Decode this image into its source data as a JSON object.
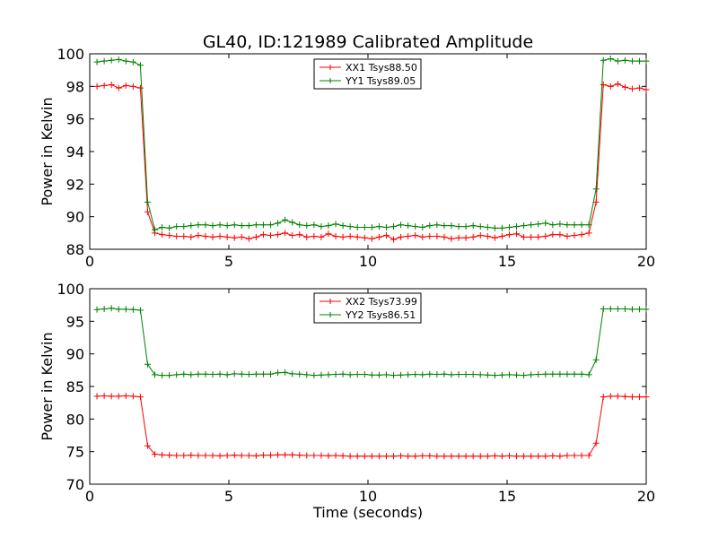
{
  "chart_data": [
    {
      "type": "line",
      "title": "GL40, ID:121989 Calibrated Amplitude",
      "xlabel": "",
      "ylabel": "Power in Kelvin",
      "xlim": [
        0,
        20
      ],
      "ylim": [
        88,
        100
      ],
      "xticks": [
        "0",
        "5",
        "10",
        "15",
        "20"
      ],
      "yticks": [
        "88",
        "90",
        "92",
        "94",
        "96",
        "98",
        "100"
      ],
      "legend_position": "top-center",
      "x": [
        0.26,
        0.52,
        0.78,
        1.04,
        1.3,
        1.56,
        1.82,
        2.08,
        2.34,
        2.6,
        2.86,
        3.12,
        3.38,
        3.64,
        3.9,
        4.16,
        4.42,
        4.68,
        4.94,
        5.2,
        5.46,
        5.72,
        5.98,
        6.24,
        6.5,
        6.76,
        7.02,
        7.28,
        7.54,
        7.8,
        8.06,
        8.32,
        8.58,
        8.84,
        9.1,
        9.36,
        9.62,
        9.88,
        10.14,
        10.4,
        10.66,
        10.92,
        11.18,
        11.44,
        11.7,
        11.96,
        12.22,
        12.48,
        12.74,
        13.0,
        13.26,
        13.52,
        13.78,
        14.04,
        14.3,
        14.56,
        14.82,
        15.08,
        15.34,
        15.6,
        15.86,
        16.12,
        16.38,
        16.64,
        16.9,
        17.16,
        17.42,
        17.68,
        17.94,
        18.2,
        18.46,
        18.72,
        18.98,
        19.24,
        19.5,
        19.76,
        20.0
      ],
      "series": [
        {
          "name": "XX1 Tsys88.50",
          "color": "#ff0000",
          "values": [
            98.0,
            98.05,
            98.1,
            97.9,
            98.05,
            98.0,
            97.9,
            90.3,
            89.0,
            88.9,
            88.85,
            88.8,
            88.8,
            88.75,
            88.85,
            88.8,
            88.75,
            88.8,
            88.75,
            88.7,
            88.75,
            88.65,
            88.75,
            88.9,
            88.85,
            88.9,
            89.0,
            88.85,
            88.9,
            88.75,
            88.8,
            88.75,
            88.95,
            88.8,
            88.75,
            88.8,
            88.75,
            88.7,
            88.65,
            88.75,
            88.85,
            88.6,
            88.75,
            88.8,
            88.85,
            88.75,
            88.8,
            88.8,
            88.75,
            88.65,
            88.7,
            88.7,
            88.75,
            88.85,
            88.8,
            88.7,
            88.8,
            88.9,
            88.95,
            88.75,
            88.75,
            88.75,
            88.8,
            88.9,
            88.9,
            88.8,
            88.85,
            88.9,
            89.0,
            90.9,
            98.1,
            98.0,
            98.15,
            97.95,
            97.85,
            97.9,
            97.8
          ]
        },
        {
          "name": "YY1 Tsys89.05",
          "color": "#008000",
          "values": [
            99.5,
            99.55,
            99.6,
            99.65,
            99.55,
            99.5,
            99.3,
            90.9,
            89.2,
            89.35,
            89.3,
            89.4,
            89.4,
            89.45,
            89.5,
            89.5,
            89.45,
            89.5,
            89.45,
            89.5,
            89.45,
            89.45,
            89.5,
            89.5,
            89.5,
            89.6,
            89.8,
            89.65,
            89.5,
            89.45,
            89.5,
            89.4,
            89.45,
            89.55,
            89.45,
            89.4,
            89.35,
            89.35,
            89.35,
            89.4,
            89.35,
            89.4,
            89.5,
            89.45,
            89.4,
            89.35,
            89.45,
            89.5,
            89.45,
            89.45,
            89.4,
            89.4,
            89.45,
            89.4,
            89.35,
            89.3,
            89.3,
            89.35,
            89.4,
            89.45,
            89.5,
            89.55,
            89.6,
            89.5,
            89.55,
            89.5,
            89.5,
            89.5,
            89.5,
            91.7,
            99.6,
            99.7,
            99.55,
            99.6,
            99.55,
            99.55,
            99.55
          ]
        }
      ]
    },
    {
      "type": "line",
      "title": "",
      "xlabel": "Time (seconds)",
      "ylabel": "Power in Kelvin",
      "xlim": [
        0,
        20
      ],
      "ylim": [
        70,
        100
      ],
      "xticks": [
        "0",
        "5",
        "10",
        "15",
        "20"
      ],
      "yticks": [
        "70",
        "75",
        "80",
        "85",
        "90",
        "95",
        "100"
      ],
      "legend_position": "top-center",
      "x": [
        0.26,
        0.52,
        0.78,
        1.04,
        1.3,
        1.56,
        1.82,
        2.08,
        2.34,
        2.6,
        2.86,
        3.12,
        3.38,
        3.64,
        3.9,
        4.16,
        4.42,
        4.68,
        4.94,
        5.2,
        5.46,
        5.72,
        5.98,
        6.24,
        6.5,
        6.76,
        7.02,
        7.28,
        7.54,
        7.8,
        8.06,
        8.32,
        8.58,
        8.84,
        9.1,
        9.36,
        9.62,
        9.88,
        10.14,
        10.4,
        10.66,
        10.92,
        11.18,
        11.44,
        11.7,
        11.96,
        12.22,
        12.48,
        12.74,
        13.0,
        13.26,
        13.52,
        13.78,
        14.04,
        14.3,
        14.56,
        14.82,
        15.08,
        15.34,
        15.6,
        15.86,
        16.12,
        16.38,
        16.64,
        16.9,
        17.16,
        17.42,
        17.68,
        17.94,
        18.2,
        18.46,
        18.72,
        18.98,
        19.24,
        19.5,
        19.76,
        20.0
      ],
      "series": [
        {
          "name": "XX2 Tsys73.99",
          "color": "#ff0000",
          "values": [
            83.5,
            83.55,
            83.5,
            83.5,
            83.55,
            83.5,
            83.4,
            75.9,
            74.6,
            74.5,
            74.45,
            74.4,
            74.4,
            74.45,
            74.4,
            74.4,
            74.4,
            74.35,
            74.4,
            74.45,
            74.4,
            74.4,
            74.35,
            74.45,
            74.45,
            74.5,
            74.5,
            74.5,
            74.45,
            74.4,
            74.4,
            74.4,
            74.35,
            74.4,
            74.35,
            74.3,
            74.3,
            74.3,
            74.3,
            74.3,
            74.3,
            74.3,
            74.35,
            74.3,
            74.3,
            74.35,
            74.35,
            74.3,
            74.3,
            74.3,
            74.3,
            74.3,
            74.3,
            74.3,
            74.3,
            74.35,
            74.3,
            74.35,
            74.3,
            74.3,
            74.3,
            74.3,
            74.3,
            74.35,
            74.3,
            74.4,
            74.4,
            74.4,
            74.4,
            76.3,
            83.4,
            83.5,
            83.5,
            83.45,
            83.4,
            83.4,
            83.4
          ]
        },
        {
          "name": "YY2 Tsys86.51",
          "color": "#008000",
          "values": [
            96.8,
            96.9,
            97.0,
            96.85,
            96.85,
            96.8,
            96.7,
            88.4,
            86.8,
            86.7,
            86.7,
            86.8,
            86.9,
            86.8,
            86.9,
            86.9,
            86.85,
            86.9,
            86.8,
            86.95,
            86.9,
            86.85,
            86.9,
            86.9,
            86.9,
            87.1,
            87.15,
            86.95,
            86.9,
            86.8,
            86.7,
            86.75,
            86.8,
            86.85,
            86.9,
            86.8,
            86.85,
            86.85,
            86.75,
            86.75,
            86.8,
            86.7,
            86.75,
            86.8,
            86.85,
            86.8,
            86.9,
            86.85,
            86.9,
            86.8,
            86.85,
            86.85,
            86.85,
            86.8,
            86.75,
            86.7,
            86.75,
            86.8,
            86.75,
            86.7,
            86.8,
            86.85,
            86.9,
            86.9,
            86.9,
            86.9,
            86.9,
            86.9,
            86.8,
            89.1,
            96.9,
            96.9,
            96.9,
            96.9,
            96.85,
            96.85,
            96.85
          ]
        }
      ]
    }
  ]
}
